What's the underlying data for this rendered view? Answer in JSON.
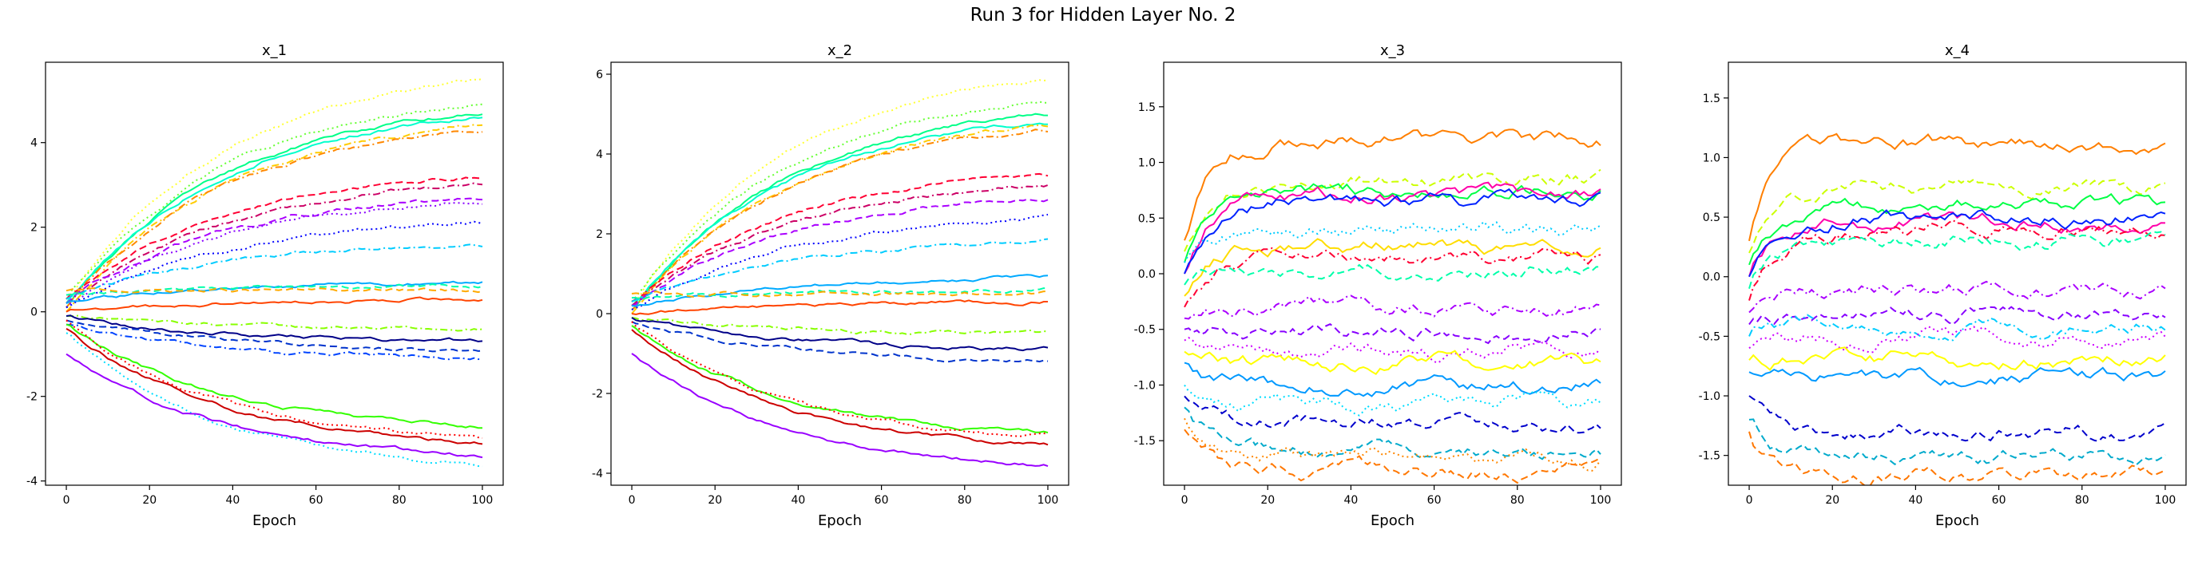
{
  "figure": {
    "title": "Run 3 for Hidden Layer No. 2"
  },
  "chart_data": [
    {
      "type": "line",
      "title": "x_1",
      "xlabel": "Epoch",
      "ylabel": "",
      "xlim": [
        -5,
        105
      ],
      "ylim": [
        -4.1,
        5.9
      ],
      "xticks": [
        0,
        20,
        40,
        60,
        80,
        100
      ],
      "yticks": [
        -4,
        -2,
        0,
        2,
        4
      ],
      "grid": false,
      "series": [
        {
          "color": "#ffff33",
          "dash": "dot",
          "start": 0.2,
          "end": 5.5
        },
        {
          "color": "#66ff33",
          "dash": "dot",
          "start": 0.3,
          "end": 4.9
        },
        {
          "color": "#00ff88",
          "dash": "solid",
          "start": 0.1,
          "end": 4.7
        },
        {
          "color": "#00ffcc",
          "dash": "solid",
          "start": 0.2,
          "end": 4.6
        },
        {
          "color": "#ffcc00",
          "dash": "dashdot",
          "start": 0.0,
          "end": 4.4
        },
        {
          "color": "#ff8800",
          "dash": "dashdot",
          "start": 0.1,
          "end": 4.3
        },
        {
          "color": "#ff0033",
          "dash": "dash",
          "start": 0.3,
          "end": 3.2
        },
        {
          "color": "#cc0066",
          "dash": "dashdot",
          "start": 0.2,
          "end": 3.0
        },
        {
          "color": "#aa00ff",
          "dash": "dash",
          "start": 0.2,
          "end": 2.7
        },
        {
          "color": "#8800ff",
          "dash": "dot",
          "start": 0.1,
          "end": 2.6
        },
        {
          "color": "#0000ff",
          "dash": "dot",
          "start": 0.1,
          "end": 2.1
        },
        {
          "color": "#00ccff",
          "dash": "dashdot",
          "start": 0.3,
          "end": 1.6
        },
        {
          "color": "#00aaff",
          "dash": "solid",
          "start": 0.2,
          "end": 0.7
        },
        {
          "color": "#00ffaa",
          "dash": "dash",
          "start": 0.4,
          "end": 0.6
        },
        {
          "color": "#ffaa00",
          "dash": "dash",
          "start": 0.5,
          "end": 0.5
        },
        {
          "color": "#ff4400",
          "dash": "solid",
          "start": 0.0,
          "end": 0.3
        },
        {
          "color": "#88ff00",
          "dash": "dashdot",
          "start": -0.1,
          "end": -0.4
        },
        {
          "color": "#000088",
          "dash": "solid",
          "start": -0.1,
          "end": -0.7
        },
        {
          "color": "#0033cc",
          "dash": "dash",
          "start": -0.2,
          "end": -0.9
        },
        {
          "color": "#0044ff",
          "dash": "dashdot",
          "start": -0.3,
          "end": -1.1
        },
        {
          "color": "#33ff00",
          "dash": "solid",
          "start": -0.3,
          "end": -2.7
        },
        {
          "color": "#ff0000",
          "dash": "dot",
          "start": -0.2,
          "end": -3.0
        },
        {
          "color": "#cc0000",
          "dash": "solid",
          "start": -0.4,
          "end": -3.1
        },
        {
          "color": "#00ddff",
          "dash": "dot",
          "start": -0.5,
          "end": -3.6
        },
        {
          "color": "#9900ff",
          "dash": "solid",
          "start": -1.0,
          "end": -3.4
        }
      ]
    },
    {
      "type": "line",
      "title": "x_2",
      "xlabel": "Epoch",
      "ylabel": "",
      "xlim": [
        -5,
        105
      ],
      "ylim": [
        -4.3,
        6.3
      ],
      "xticks": [
        0,
        20,
        40,
        60,
        80,
        100
      ],
      "yticks": [
        -4,
        -2,
        0,
        2,
        4,
        6
      ],
      "grid": false,
      "series": [
        {
          "color": "#ffff33",
          "dash": "dot",
          "start": 0.2,
          "end": 5.9
        },
        {
          "color": "#66ff33",
          "dash": "dot",
          "start": 0.3,
          "end": 5.3
        },
        {
          "color": "#00ff88",
          "dash": "solid",
          "start": 0.1,
          "end": 5.0
        },
        {
          "color": "#00ffcc",
          "dash": "solid",
          "start": 0.2,
          "end": 4.8
        },
        {
          "color": "#ffcc00",
          "dash": "dashdot",
          "start": 0.0,
          "end": 4.7
        },
        {
          "color": "#ff8800",
          "dash": "dashdot",
          "start": 0.1,
          "end": 4.6
        },
        {
          "color": "#ff0033",
          "dash": "dash",
          "start": 0.3,
          "end": 3.5
        },
        {
          "color": "#cc0066",
          "dash": "dashdot",
          "start": 0.2,
          "end": 3.2
        },
        {
          "color": "#aa00ff",
          "dash": "dash",
          "start": 0.2,
          "end": 2.9
        },
        {
          "color": "#0000ff",
          "dash": "dot",
          "start": 0.1,
          "end": 2.4
        },
        {
          "color": "#00ccff",
          "dash": "dashdot",
          "start": 0.3,
          "end": 1.8
        },
        {
          "color": "#00aaff",
          "dash": "solid",
          "start": 0.2,
          "end": 0.9
        },
        {
          "color": "#00ffaa",
          "dash": "dash",
          "start": 0.4,
          "end": 0.6
        },
        {
          "color": "#ffaa00",
          "dash": "dash",
          "start": 0.5,
          "end": 0.5
        },
        {
          "color": "#ff4400",
          "dash": "solid",
          "start": 0.0,
          "end": 0.3
        },
        {
          "color": "#88ff00",
          "dash": "dashdot",
          "start": -0.1,
          "end": -0.5
        },
        {
          "color": "#000088",
          "dash": "solid",
          "start": -0.1,
          "end": -0.9
        },
        {
          "color": "#0033cc",
          "dash": "dash",
          "start": -0.2,
          "end": -1.2
        },
        {
          "color": "#33ff00",
          "dash": "solid",
          "start": -0.3,
          "end": -3.0
        },
        {
          "color": "#ff0000",
          "dash": "dot",
          "start": -0.2,
          "end": -3.1
        },
        {
          "color": "#cc0000",
          "dash": "solid",
          "start": -0.4,
          "end": -3.3
        },
        {
          "color": "#9900ff",
          "dash": "solid",
          "start": -1.0,
          "end": -3.8
        }
      ]
    },
    {
      "type": "line",
      "title": "x_3",
      "xlabel": "Epoch",
      "ylabel": "",
      "xlim": [
        -5,
        105
      ],
      "ylim": [
        -1.9,
        1.9
      ],
      "xticks": [
        0,
        20,
        40,
        60,
        80,
        100
      ],
      "yticks": [
        -1.5,
        -1.0,
        -0.5,
        0.0,
        0.5,
        1.0,
        1.5
      ],
      "grid": false,
      "series": [
        {
          "color": "#ff7f00",
          "dash": "solid",
          "start": 0.3,
          "end": 1.2
        },
        {
          "color": "#ccff00",
          "dash": "dash",
          "start": 0.2,
          "end": 0.85
        },
        {
          "color": "#00ff44",
          "dash": "solid",
          "start": 0.1,
          "end": 0.75
        },
        {
          "color": "#ff00aa",
          "dash": "solid",
          "start": 0.0,
          "end": 0.7
        },
        {
          "color": "#0022ff",
          "dash": "solid",
          "start": 0.0,
          "end": 0.65
        },
        {
          "color": "#00ccff",
          "dash": "dot",
          "start": 0.1,
          "end": 0.4
        },
        {
          "color": "#ffdd00",
          "dash": "solid",
          "start": -0.2,
          "end": 0.25
        },
        {
          "color": "#ff0033",
          "dash": "dashdot",
          "start": -0.3,
          "end": 0.15
        },
        {
          "color": "#00ffaa",
          "dash": "dash",
          "start": -0.1,
          "end": 0.05
        },
        {
          "color": "#aa00ff",
          "dash": "dashdot",
          "start": -0.4,
          "end": -0.3
        },
        {
          "color": "#8800ff",
          "dash": "dash",
          "start": -0.5,
          "end": -0.5
        },
        {
          "color": "#cc00ff",
          "dash": "dot",
          "start": -0.6,
          "end": -0.7
        },
        {
          "color": "#ffff00",
          "dash": "solid",
          "start": -0.7,
          "end": -0.8
        },
        {
          "color": "#0099ff",
          "dash": "solid",
          "start": -0.8,
          "end": -1.0
        },
        {
          "color": "#00ddff",
          "dash": "dot",
          "start": -1.0,
          "end": -1.15
        },
        {
          "color": "#0000cc",
          "dash": "dash",
          "start": -1.1,
          "end": -1.35
        },
        {
          "color": "#00aacc",
          "dash": "dash",
          "start": -1.2,
          "end": -1.6
        },
        {
          "color": "#ff8800",
          "dash": "dot",
          "start": -1.3,
          "end": -1.65
        },
        {
          "color": "#ff7700",
          "dash": "dash",
          "start": -1.4,
          "end": -1.75
        }
      ]
    },
    {
      "type": "line",
      "title": "x_4",
      "xlabel": "Epoch",
      "ylabel": "",
      "xlim": [
        -5,
        105
      ],
      "ylim": [
        -1.75,
        1.8
      ],
      "xticks": [
        0,
        20,
        40,
        60,
        80,
        100
      ],
      "yticks": [
        -1.5,
        -1.0,
        -0.5,
        0.0,
        0.5,
        1.0,
        1.5
      ],
      "grid": false,
      "series": [
        {
          "color": "#ff7f00",
          "dash": "solid",
          "start": 0.3,
          "end": 1.12
        },
        {
          "color": "#ccff00",
          "dash": "dash",
          "start": 0.2,
          "end": 0.75
        },
        {
          "color": "#00ff44",
          "dash": "solid",
          "start": 0.1,
          "end": 0.6
        },
        {
          "color": "#ff00aa",
          "dash": "solid",
          "start": 0.0,
          "end": 0.45
        },
        {
          "color": "#0022ff",
          "dash": "solid",
          "start": 0.0,
          "end": 0.5
        },
        {
          "color": "#ff0033",
          "dash": "dashdot",
          "start": -0.2,
          "end": 0.4
        },
        {
          "color": "#00ffaa",
          "dash": "dash",
          "start": -0.1,
          "end": 0.3
        },
        {
          "color": "#aa00ff",
          "dash": "dashdot",
          "start": -0.3,
          "end": -0.1
        },
        {
          "color": "#8800ff",
          "dash": "dash",
          "start": -0.4,
          "end": -0.3
        },
        {
          "color": "#00ccff",
          "dash": "dashdot",
          "start": -0.5,
          "end": -0.4
        },
        {
          "color": "#cc00ff",
          "dash": "dot",
          "start": -0.6,
          "end": -0.5
        },
        {
          "color": "#ffff00",
          "dash": "solid",
          "start": -0.7,
          "end": -0.7
        },
        {
          "color": "#0099ff",
          "dash": "solid",
          "start": -0.8,
          "end": -0.85
        },
        {
          "color": "#0000cc",
          "dash": "dash",
          "start": -1.0,
          "end": -1.3
        },
        {
          "color": "#00aacc",
          "dash": "dash",
          "start": -1.2,
          "end": -1.5
        },
        {
          "color": "#ff7700",
          "dash": "dash",
          "start": -1.3,
          "end": -1.65
        }
      ]
    }
  ]
}
